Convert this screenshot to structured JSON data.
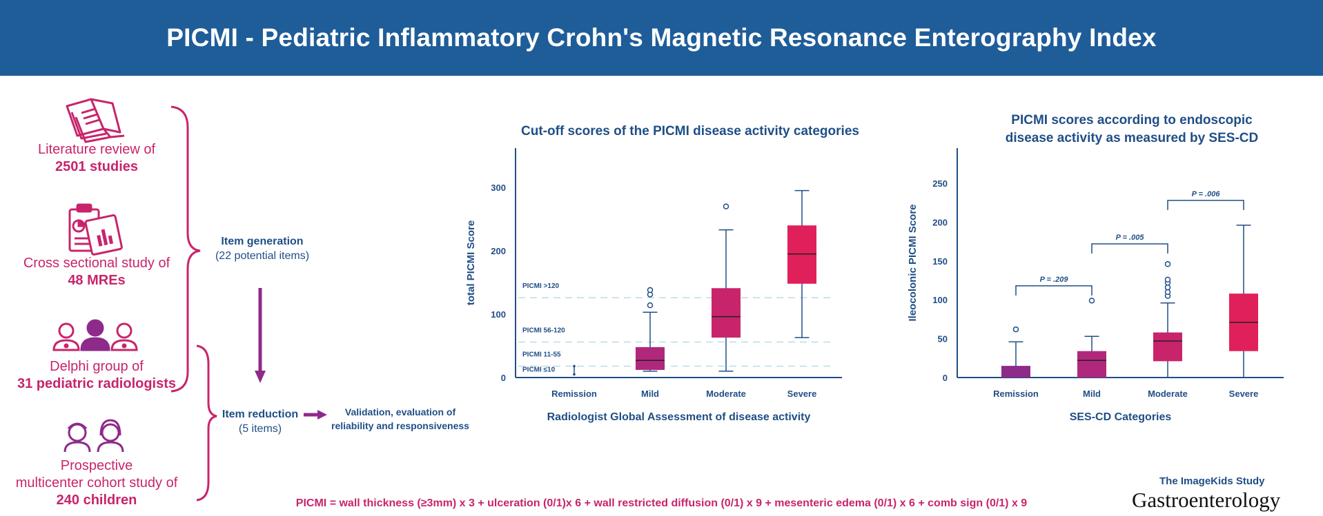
{
  "header": {
    "title": "PICMI - Pediatric Inflammatory Crohn's Magnetic Resonance Enterography Index"
  },
  "sources": [
    {
      "icon": "open-book-icon",
      "line1": "Literature review of",
      "line2": "2501 studies"
    },
    {
      "icon": "clipboard-report-icon",
      "line1": "Cross sectional study of",
      "line2": "48 MREs"
    },
    {
      "icon": "radiologists-group-icon",
      "line1": "Delphi group of",
      "line2": "31 pediatric radiologists"
    },
    {
      "icon": "children-icon",
      "line1": "Prospective",
      "line1b": "multicenter cohort study of",
      "line2": "240 children"
    }
  ],
  "process": {
    "generation": {
      "title": "Item generation",
      "detail": "(22 potential items)"
    },
    "reduction": {
      "title": "Item reduction",
      "detail": "(5 items)"
    },
    "validation": {
      "line1": "Validation, evaluation of",
      "line2": "reliability and responsiveness"
    }
  },
  "formula": "PICMI = wall thickness (≥3mm) x 3 + ulceration (0/1)x 6 + wall restricted diffusion (0/1) x 9 + mesenteric edema (0/1) x 6 + comb sign (0/1) x 9",
  "footer": {
    "study": "The ImageKids Study",
    "journal": "Gastroenterology"
  },
  "colors": {
    "header": "#1f5d99",
    "navy": "#1f4e86",
    "magenta": "#c8246b",
    "purple": "#8e2a8a",
    "box_colors": [
      "#8e2a8a",
      "#b0287c",
      "#c8246b",
      "#e0205a"
    ],
    "cutoff_line": "#b9dce6"
  },
  "chart_data": [
    {
      "type": "box",
      "title": "Cut-off scores of the PICMI disease activity categories",
      "xlabel": "Radiologist Global Assessment of disease activity",
      "ylabel": "total PICMI Score",
      "ylim": [
        0,
        300
      ],
      "yticks": [
        0,
        100,
        200,
        300
      ],
      "categories": [
        "Remission",
        "Mild",
        "Moderate",
        "Severe"
      ],
      "boxes": [
        {
          "category": "Remission",
          "min": 5,
          "q1": null,
          "median": null,
          "q3": null,
          "max": 18,
          "outliers": []
        },
        {
          "category": "Mild",
          "min": 10,
          "q1": 12,
          "median": 27,
          "q3": 48,
          "max": 103,
          "outliers": [
            114,
            131,
            138
          ]
        },
        {
          "category": "Moderate",
          "min": 10,
          "q1": 63,
          "median": 96,
          "q3": 141,
          "max": 233,
          "outliers": [
            270
          ]
        },
        {
          "category": "Severe",
          "min": 63,
          "q1": 148,
          "median": 195,
          "q3": 240,
          "max": 295,
          "outliers": []
        }
      ],
      "cutoffs": [
        {
          "label": "PICMI >120",
          "value": 126
        },
        {
          "label": "PICMI 56-120",
          "value": 56
        },
        {
          "label": "PICMI 11-55",
          "value": 18
        },
        {
          "label": "PICMI ≤10",
          "value": 5
        }
      ]
    },
    {
      "type": "box",
      "title": "PICMI scores according to endoscopic disease activity as measured by SES-CD",
      "title_lines": [
        "PICMI scores according to endoscopic",
        "disease activity as measured by SES-CD"
      ],
      "xlabel": "SES-CD Categories",
      "ylabel": "Ileocolonic PICMI Score",
      "ylim": [
        0,
        250
      ],
      "yticks": [
        0,
        50,
        100,
        150,
        200,
        250
      ],
      "categories": [
        "Remission",
        "Mild",
        "Moderate",
        "Severe"
      ],
      "boxes": [
        {
          "category": "Remission",
          "min": 0,
          "q1": 0,
          "median": 0,
          "q3": 15,
          "max": 46,
          "outliers": [
            62
          ]
        },
        {
          "category": "Mild",
          "min": 0,
          "q1": 0,
          "median": 22,
          "q3": 34,
          "max": 53,
          "outliers": [
            99
          ]
        },
        {
          "category": "Moderate",
          "min": 0,
          "q1": 21,
          "median": 47,
          "q3": 58,
          "max": 96,
          "outliers": [
            105,
            110,
            116,
            122,
            126,
            146
          ]
        },
        {
          "category": "Severe",
          "min": 0,
          "q1": 34,
          "median": 71,
          "q3": 108,
          "max": 196,
          "outliers": []
        }
      ],
      "comparisons": [
        {
          "from": "Remission",
          "to": "Mild",
          "label": "P = .209",
          "y": 118
        },
        {
          "from": "Mild",
          "to": "Moderate",
          "label": "P = .005",
          "y": 172
        },
        {
          "from": "Moderate",
          "to": "Severe",
          "label": "P = .006",
          "y": 228
        }
      ]
    }
  ]
}
